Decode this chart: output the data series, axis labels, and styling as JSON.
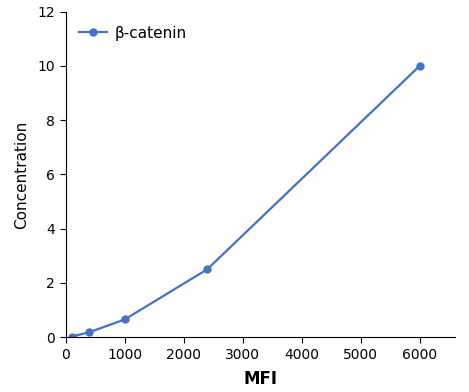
{
  "x": [
    100,
    400,
    1000,
    2400,
    6000
  ],
  "y": [
    0.02,
    0.18,
    0.65,
    2.5,
    10.0
  ],
  "line_color": "#4472C4",
  "marker": "o",
  "marker_size": 5,
  "line_width": 1.6,
  "xlabel": "MFI",
  "ylabel": "Concentration",
  "xlabel_fontsize": 12,
  "ylabel_fontsize": 11,
  "legend_label": "β-catenin",
  "xlim": [
    0,
    6600
  ],
  "ylim": [
    0,
    12
  ],
  "xticks": [
    0,
    1000,
    2000,
    3000,
    4000,
    5000,
    6000
  ],
  "yticks": [
    0,
    2,
    4,
    6,
    8,
    10,
    12
  ],
  "tick_fontsize": 10,
  "background_color": "#ffffff",
  "legend_fontsize": 11
}
